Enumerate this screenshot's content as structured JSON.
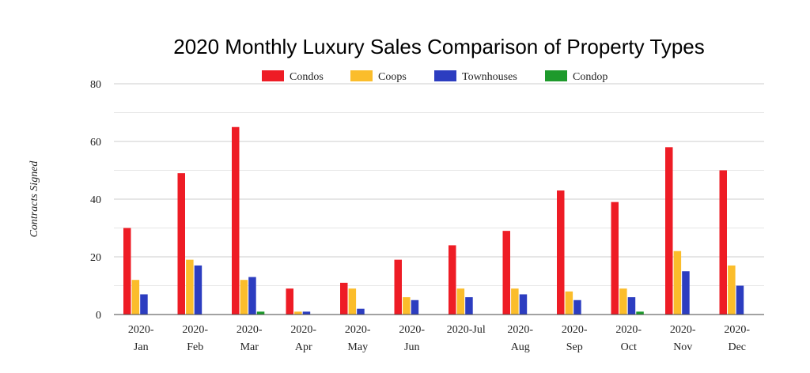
{
  "chart_data": {
    "type": "bar",
    "title": "2020 Monthly Luxury Sales Comparison of Property Types",
    "xlabel": "",
    "ylabel": "Contracts Signed",
    "ylim": [
      0,
      80
    ],
    "yticks": [
      0,
      20,
      40,
      60,
      80
    ],
    "grid": true,
    "legend_position": "top",
    "categories": [
      [
        "2020-",
        "Jan"
      ],
      [
        "2020-",
        "Feb"
      ],
      [
        "2020-",
        "Mar"
      ],
      [
        "2020-",
        "Apr"
      ],
      [
        "2020-",
        "May"
      ],
      [
        "2020-",
        "Jun"
      ],
      [
        "2020-Jul"
      ],
      [
        "2020-",
        "Aug"
      ],
      [
        "2020-",
        "Sep"
      ],
      [
        "2020-",
        "Oct"
      ],
      [
        "2020-",
        "Nov"
      ],
      [
        "2020-",
        "Dec"
      ]
    ],
    "series": [
      {
        "name": "Condos",
        "color": "#ee1c25",
        "values": [
          30,
          49,
          65,
          9,
          11,
          19,
          24,
          29,
          43,
          39,
          58,
          50
        ]
      },
      {
        "name": "Coops",
        "color": "#fbbd2b",
        "values": [
          12,
          19,
          12,
          1,
          9,
          6,
          9,
          9,
          8,
          9,
          22,
          17
        ]
      },
      {
        "name": "Townhouses",
        "color": "#2c3dc0",
        "values": [
          7,
          17,
          13,
          1,
          2,
          5,
          6,
          7,
          5,
          6,
          15,
          10
        ]
      },
      {
        "name": "Condop",
        "color": "#1e9a2c",
        "values": [
          0,
          0,
          1,
          0,
          0,
          0,
          0,
          0,
          0,
          1,
          0,
          0
        ]
      }
    ]
  }
}
